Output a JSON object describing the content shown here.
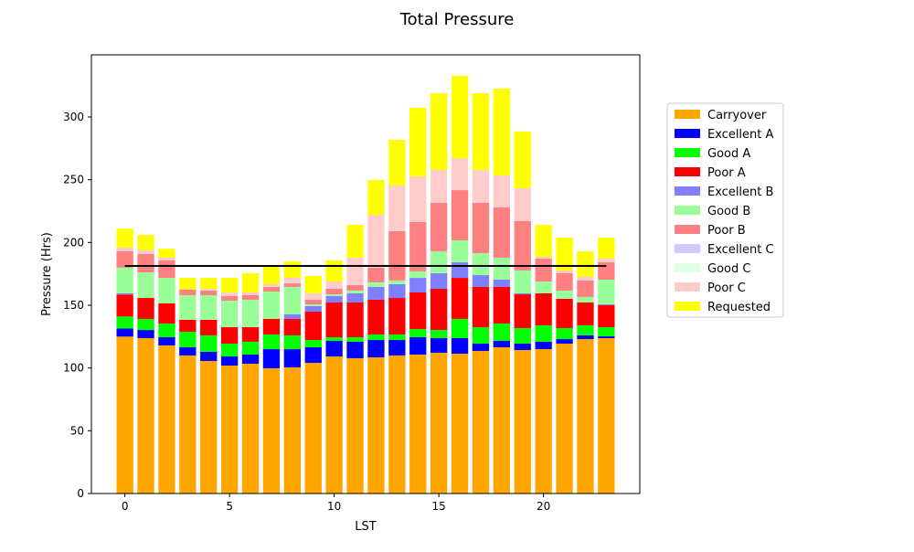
{
  "chart_data": {
    "type": "bar",
    "stacked": true,
    "title": "Total Pressure",
    "xlabel": "LST",
    "ylabel": "Pressure (Hrs)",
    "xlim": [
      -1.6,
      24.6
    ],
    "ylim": [
      0,
      349.5
    ],
    "xticks": [
      0,
      5,
      10,
      15,
      20
    ],
    "yticks": [
      0,
      50,
      100,
      150,
      200,
      250,
      300
    ],
    "grid": false,
    "legend_position": "right",
    "x": [
      0,
      1,
      2,
      3,
      4,
      5,
      6,
      7,
      8,
      9,
      10,
      11,
      12,
      13,
      14,
      15,
      16,
      17,
      18,
      19,
      20,
      21,
      22,
      23
    ],
    "reference_line": {
      "y": 181.3,
      "x_range": [
        0,
        23
      ],
      "color": "#000000"
    },
    "series": [
      {
        "name": "Carryover",
        "color": "#FFA500",
        "values": [
          125,
          123.8,
          118,
          110,
          105.6,
          101.9,
          103.4,
          99.8,
          100.5,
          104.1,
          109.2,
          107.8,
          108.5,
          110,
          110.7,
          112.1,
          111.4,
          113.6,
          116.5,
          114.3,
          115,
          119.4,
          123,
          123.8
        ]
      },
      {
        "name": "Excellent A",
        "color": "#0000FF",
        "values": [
          6.5,
          6.5,
          6.5,
          6.5,
          7.3,
          7.3,
          7.3,
          15.2,
          14.5,
          12.4,
          12.4,
          13.1,
          13.8,
          12.3,
          13.8,
          11.7,
          12.4,
          5.8,
          5.1,
          5.1,
          5.9,
          3.6,
          3,
          1.4
        ]
      },
      {
        "name": "Good A",
        "color": "#00FF00",
        "values": [
          9.5,
          8.7,
          10.9,
          12.4,
          13.1,
          10.2,
          10.2,
          11.7,
          11,
          5.8,
          2.9,
          3.6,
          4.4,
          4.4,
          6.5,
          6.5,
          15.3,
          13.1,
          13.8,
          12.4,
          13.1,
          8.8,
          8,
          7.3
        ]
      },
      {
        "name": "Poor A",
        "color": "#FF0000",
        "values": [
          17.5,
          16.8,
          16.1,
          9.5,
          12.4,
          13.1,
          11.6,
          12.4,
          13.1,
          22.6,
          27.7,
          27.7,
          27.7,
          29.1,
          29.2,
          32.8,
          32.7,
          32.1,
          29.2,
          26.9,
          25.5,
          23.3,
          18.2,
          17.5
        ]
      },
      {
        "name": "Excellent B",
        "color": "#8080FF",
        "values": [
          1,
          0,
          0,
          0,
          0,
          0,
          0,
          0,
          3.6,
          4.4,
          5.1,
          7.3,
          10.2,
          11,
          11.6,
          12.4,
          12.4,
          9.4,
          5.8,
          0.8,
          0,
          0,
          0,
          0.7
        ]
      },
      {
        "name": "Good B",
        "color": "#99FF99",
        "values": [
          20.5,
          20.4,
          20.3,
          19.6,
          19.6,
          21.1,
          21.9,
          21.8,
          21.9,
          1.4,
          1.4,
          2.2,
          3.6,
          2.9,
          5.2,
          17.5,
          17.5,
          17.5,
          17.5,
          18.2,
          9.4,
          6.6,
          4.4,
          19.7
        ]
      },
      {
        "name": "Poor B",
        "color": "#FF8080",
        "values": [
          13,
          14.6,
          13.9,
          4.4,
          3.7,
          3.7,
          3.6,
          3.7,
          2.9,
          3.7,
          4.4,
          4.3,
          11.7,
          39.3,
          39.3,
          38.6,
          40,
          40.1,
          40,
          39.3,
          18.2,
          13.8,
          13.1,
          13.8
        ]
      },
      {
        "name": "Excellent C",
        "color": "#CCCCFF",
        "values": [
          0,
          0,
          0,
          0,
          0,
          0,
          0,
          0,
          0,
          0,
          0,
          0,
          0,
          0,
          0,
          0,
          0,
          0,
          0,
          0,
          0,
          0,
          0,
          0
        ]
      },
      {
        "name": "Good C",
        "color": "#E0FFE0",
        "values": [
          0,
          0,
          0,
          0,
          0,
          0,
          0,
          0,
          0,
          0,
          0,
          0,
          0,
          0,
          0,
          0,
          0,
          0,
          0,
          0,
          0,
          0,
          0,
          0
        ]
      },
      {
        "name": "Poor C",
        "color": "#FFCCCC",
        "values": [
          3,
          3.2,
          2.2,
          0,
          1.3,
          2.9,
          2.2,
          2.2,
          4.3,
          5.1,
          5.8,
          21.9,
          42.1,
          36.4,
          36.4,
          26.2,
          25.5,
          26.2,
          25.5,
          26.2,
          1.5,
          2.2,
          2.9,
          2.9
        ]
      },
      {
        "name": "Requested",
        "color": "#FFFF00",
        "values": [
          15,
          12,
          7.1,
          9.4,
          8.8,
          11.6,
          15.3,
          14,
          13.2,
          13.8,
          16.8,
          26.1,
          27.8,
          36.4,
          54.6,
          61.1,
          65.6,
          61.1,
          69.2,
          45.2,
          25.4,
          26.2,
          20.4,
          16.8
        ]
      }
    ]
  }
}
